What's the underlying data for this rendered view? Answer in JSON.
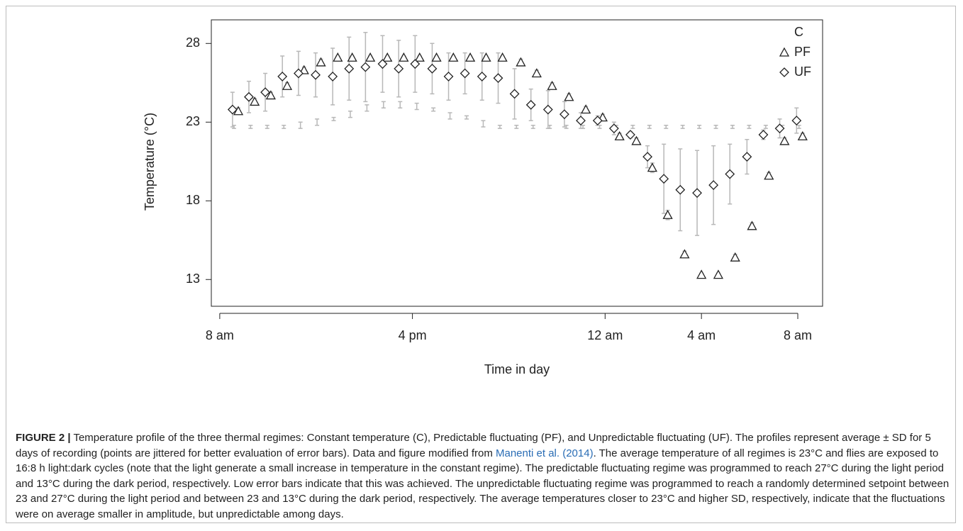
{
  "chart_data": {
    "type": "scatter",
    "x_label": "Time in day",
    "y_label": "Temperature (°C)",
    "xlim": [
      7.65,
      33.03
    ],
    "ylim": [
      11.3,
      29.5
    ],
    "xticks": [
      {
        "value": 8,
        "label": "8 am"
      },
      {
        "value": 16,
        "label": "4 pm"
      },
      {
        "value": 24,
        "label": "12 am"
      },
      {
        "value": 28,
        "label": "4 am"
      },
      {
        "value": 32,
        "label": "8 am"
      }
    ],
    "yticks": [
      13,
      18,
      23,
      28
    ],
    "legend": "top-right",
    "error_color": "#b8b8b8",
    "series": [
      {
        "name": "C",
        "marker": "none",
        "color": "#222222",
        "x": [
          8.59,
          9.28,
          9.97,
          10.66,
          11.35,
          12.04,
          12.73,
          13.42,
          14.11,
          14.8,
          15.49,
          16.18,
          16.87,
          17.56,
          18.25,
          18.94,
          19.63,
          20.32,
          21.01,
          21.7,
          22.39,
          23.08,
          23.77,
          24.46,
          25.15,
          25.84,
          26.53,
          27.22,
          27.91,
          28.6,
          29.29,
          29.98,
          30.67,
          31.36,
          32.05
        ],
        "values": [
          22.7,
          22.7,
          22.7,
          22.7,
          22.8,
          23.0,
          23.2,
          23.5,
          23.9,
          24.1,
          24.1,
          24.0,
          23.8,
          23.4,
          23.3,
          22.9,
          22.7,
          22.7,
          22.7,
          22.7,
          22.7,
          22.7,
          22.7,
          22.7,
          22.7,
          22.7,
          22.7,
          22.7,
          22.7,
          22.7,
          22.7,
          22.7,
          22.7,
          22.7,
          22.7
        ],
        "sd": [
          0.1,
          0.1,
          0.1,
          0.1,
          0.2,
          0.2,
          0.1,
          0.2,
          0.2,
          0.2,
          0.2,
          0.2,
          0.1,
          0.2,
          0.1,
          0.2,
          0.1,
          0.1,
          0.1,
          0.1,
          0.1,
          0.1,
          0.1,
          0.1,
          0.1,
          0.1,
          0.1,
          0.1,
          0.1,
          0.1,
          0.1,
          0.1,
          0.1,
          0.1,
          0.1
        ]
      },
      {
        "name": "PF",
        "marker": "triangle",
        "color": "#222222",
        "x": [
          8.77,
          9.45,
          10.12,
          10.8,
          11.5,
          12.2,
          12.9,
          13.5,
          14.25,
          14.96,
          15.64,
          16.3,
          17.0,
          17.7,
          18.4,
          19.06,
          19.74,
          20.5,
          21.16,
          21.8,
          22.5,
          23.2,
          23.9,
          24.6,
          25.3,
          25.96,
          26.6,
          27.3,
          28.0,
          28.7,
          29.4,
          30.1,
          30.8,
          31.45,
          32.2
        ],
        "values": [
          23.7,
          24.3,
          24.7,
          25.3,
          26.3,
          26.8,
          27.1,
          27.1,
          27.1,
          27.1,
          27.1,
          27.1,
          27.1,
          27.1,
          27.1,
          27.1,
          27.1,
          26.8,
          26.1,
          25.3,
          24.6,
          23.8,
          23.3,
          22.1,
          21.8,
          20.1,
          17.1,
          14.6,
          13.3,
          13.3,
          14.4,
          16.4,
          19.6,
          21.8,
          22.1
        ],
        "sd": [
          0.2,
          0.2,
          0.2,
          0.2,
          0.2,
          0.2,
          0.1,
          0.1,
          0.1,
          0.1,
          0.1,
          0.1,
          0.1,
          0.1,
          0.1,
          0.1,
          0.1,
          0.2,
          0.2,
          0.2,
          0.2,
          0.2,
          0.2,
          0.2,
          0.2,
          0.3,
          0.3,
          0.2,
          0.1,
          0.1,
          0.2,
          0.2,
          0.2,
          0.2,
          0.2
        ]
      },
      {
        "name": "UF",
        "marker": "diamond",
        "color": "#222222",
        "x": [
          8.53,
          9.21,
          9.89,
          10.6,
          11.27,
          11.98,
          12.69,
          13.37,
          14.05,
          14.76,
          15.43,
          16.11,
          16.82,
          17.5,
          18.18,
          18.89,
          19.56,
          20.24,
          20.92,
          21.63,
          22.31,
          22.99,
          23.69,
          24.37,
          25.05,
          25.76,
          26.44,
          27.12,
          27.82,
          28.5,
          29.18,
          29.89,
          30.57,
          31.25,
          31.95
        ],
        "values": [
          23.8,
          24.6,
          24.9,
          25.9,
          26.1,
          26.0,
          25.9,
          26.4,
          26.5,
          26.7,
          26.4,
          26.7,
          26.4,
          25.9,
          26.1,
          25.9,
          25.8,
          24.8,
          24.1,
          23.8,
          23.5,
          23.1,
          23.1,
          22.6,
          22.2,
          20.8,
          19.4,
          18.7,
          18.5,
          19.0,
          19.7,
          20.8,
          22.2,
          22.6,
          23.1
        ],
        "sd": [
          1.1,
          1.0,
          1.2,
          1.3,
          1.4,
          1.4,
          1.8,
          2.0,
          2.2,
          1.8,
          1.8,
          1.8,
          1.6,
          1.5,
          1.3,
          1.5,
          1.6,
          1.6,
          1.0,
          1.2,
          0.8,
          0.5,
          0.3,
          0.4,
          0.2,
          0.7,
          2.2,
          2.6,
          2.7,
          2.5,
          1.9,
          1.1,
          0.3,
          0.6,
          0.8
        ]
      }
    ]
  },
  "caption": {
    "label": "FIGURE 2 |",
    "text_before": " Temperature profile of the three thermal regimes: Constant temperature (C), Predictable fluctuating (PF), and Unpredictable fluctuating (UF). The profiles represent average ± SD for 5 days of recording (points are jittered for better evaluation of error bars). Data and figure modified from ",
    "link": "Manenti et al. (2014)",
    "text_after": ". The average temperature of all regimes is 23°C and flies are exposed to 16:8 h light:dark cycles (note that the light generate a small increase in temperature in the constant regime). The predictable fluctuating regime was programmed to reach 27°C during the light period and 13°C during the dark period, respectively. Low error bars indicate that this was achieved. The unpredictable fluctuating regime was programmed to reach a randomly determined setpoint between 23 and 27°C during the light period and between 23 and 13°C during the dark period, respectively. The average temperatures closer to 23°C and higher SD, respectively, indicate that the fluctuations were on average smaller in amplitude, but unpredictable among days."
  }
}
